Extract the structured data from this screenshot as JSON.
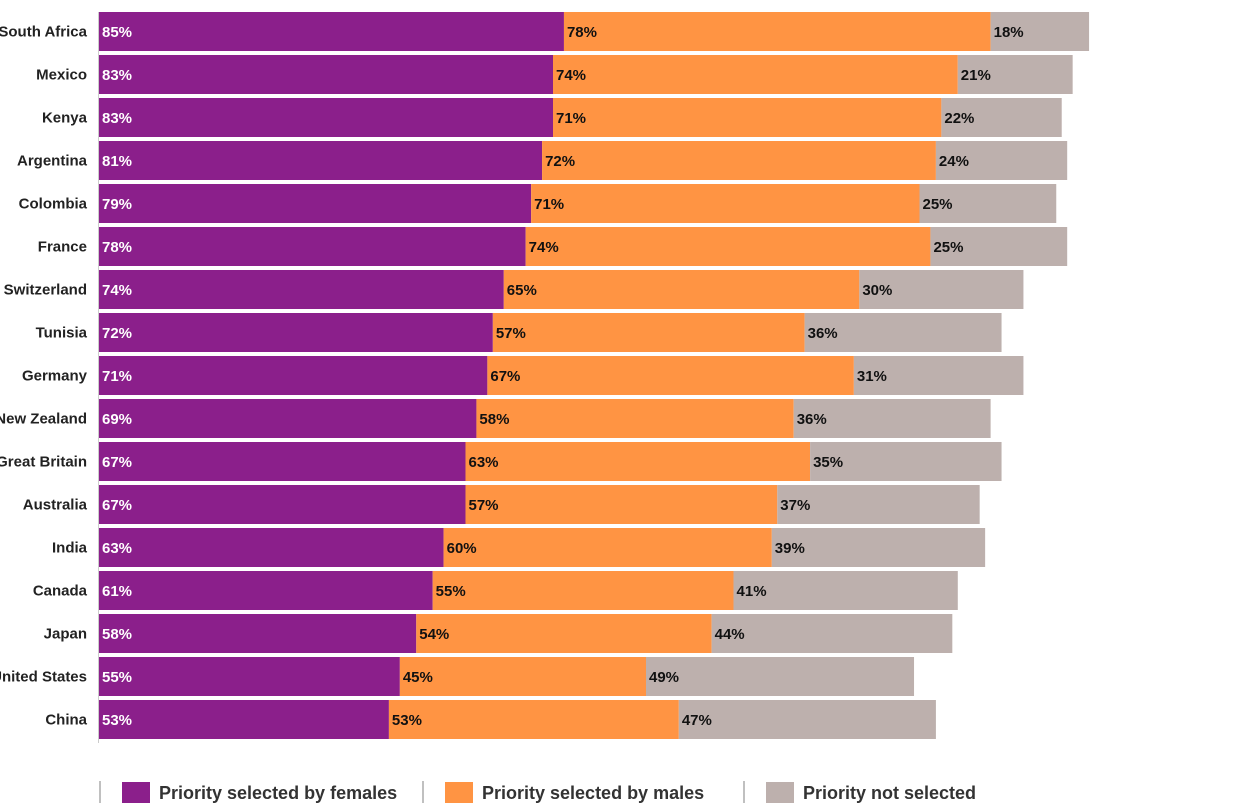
{
  "chart_data": {
    "type": "bar",
    "orientation": "horizontal",
    "stacked": true,
    "categories": [
      "South Africa",
      "Mexico",
      "Kenya",
      "Argentina",
      "Colombia",
      "France",
      "Switzerland",
      "Tunisia",
      "Germany",
      "New Zealand",
      "Great Britain",
      "Australia",
      "India",
      "Canada",
      "Japan",
      "United States",
      "China"
    ],
    "series": [
      {
        "name": "Priority selected by females",
        "color": "#8b1f8b",
        "values": [
          85,
          83,
          83,
          81,
          79,
          78,
          74,
          72,
          71,
          69,
          67,
          67,
          63,
          61,
          58,
          55,
          53
        ],
        "labels": [
          "85%",
          "83%",
          "83%",
          "81%",
          "79%",
          "78%",
          "74%",
          "72%",
          "71%",
          "69%",
          "67%",
          "67%",
          "63%",
          "61%",
          "58%",
          "55%",
          "53%"
        ]
      },
      {
        "name": "Priority selected by males",
        "color": "#ff9443",
        "values": [
          78,
          74,
          71,
          72,
          71,
          74,
          65,
          57,
          67,
          58,
          63,
          57,
          60,
          55,
          54,
          45,
          53
        ],
        "labels": [
          "78%",
          "74%",
          "71%",
          "72%",
          "71%",
          "74%",
          "65%",
          "57%",
          "67%",
          "58%",
          "63%",
          "57%",
          "60%",
          "55%",
          "54%",
          "45%",
          "53%"
        ]
      },
      {
        "name": "Priority not selected",
        "color": "#bdb0ad",
        "values": [
          18,
          21,
          22,
          24,
          25,
          25,
          30,
          36,
          31,
          36,
          35,
          37,
          39,
          41,
          44,
          49,
          47
        ],
        "labels": [
          "18%",
          "21%",
          "22%",
          "24%",
          "25%",
          "25%",
          "30%",
          "36%",
          "31%",
          "36%",
          "35%",
          "37%",
          "39%",
          "41%",
          "44%",
          "49%",
          "47%"
        ]
      }
    ],
    "grid": false,
    "legend_position": "bottom",
    "title": "",
    "xlabel": "",
    "ylabel": ""
  }
}
